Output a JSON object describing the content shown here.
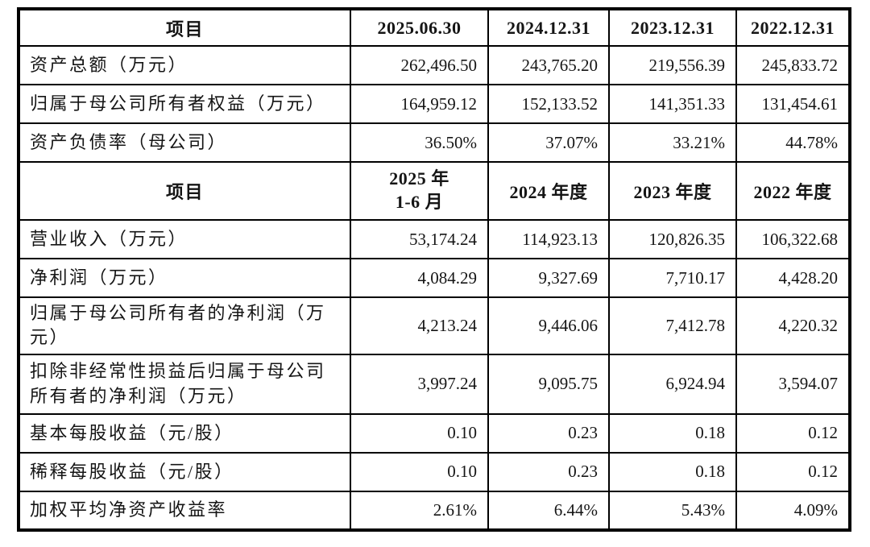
{
  "table": {
    "section1": {
      "header": {
        "label": "项目",
        "cols": [
          "2025.06.30",
          "2024.12.31",
          "2023.12.31",
          "2022.12.31"
        ]
      },
      "rows": [
        {
          "label": "资产总额（万元）",
          "values": [
            "262,496.50",
            "243,765.20",
            "219,556.39",
            "245,833.72"
          ]
        },
        {
          "label": "归属于母公司所有者权益（万元）",
          "values": [
            "164,959.12",
            "152,133.52",
            "141,351.33",
            "131,454.61"
          ]
        },
        {
          "label": "资产负债率（母公司）",
          "values": [
            "36.50%",
            "37.07%",
            "33.21%",
            "44.78%"
          ]
        }
      ]
    },
    "section2": {
      "header": {
        "label": "项目",
        "col1_line1": "2025 年",
        "col1_line2": "1-6 月",
        "cols": [
          "2024 年度",
          "2023 年度",
          "2022 年度"
        ]
      },
      "rows": [
        {
          "label": "营业收入（万元）",
          "values": [
            "53,174.24",
            "114,923.13",
            "120,826.35",
            "106,322.68"
          ]
        },
        {
          "label": "净利润（万元）",
          "values": [
            "4,084.29",
            "9,327.69",
            "7,710.17",
            "4,428.20"
          ]
        },
        {
          "label": "归属于母公司所有者的净利润（万元）",
          "values": [
            "4,213.24",
            "9,446.06",
            "7,412.78",
            "4,220.32"
          ]
        },
        {
          "label": "扣除非经常性损益后归属于母公司所有者的净利润（万元）",
          "values": [
            "3,997.24",
            "9,095.75",
            "6,924.94",
            "3,594.07"
          ]
        },
        {
          "label": "基本每股收益（元/股）",
          "values": [
            "0.10",
            "0.23",
            "0.18",
            "0.12"
          ]
        },
        {
          "label": "稀释每股收益（元/股）",
          "values": [
            "0.10",
            "0.23",
            "0.18",
            "0.12"
          ]
        },
        {
          "label": "加权平均净资产收益率",
          "values": [
            "2.61%",
            "6.44%",
            "5.43%",
            "4.09%"
          ]
        }
      ]
    }
  }
}
